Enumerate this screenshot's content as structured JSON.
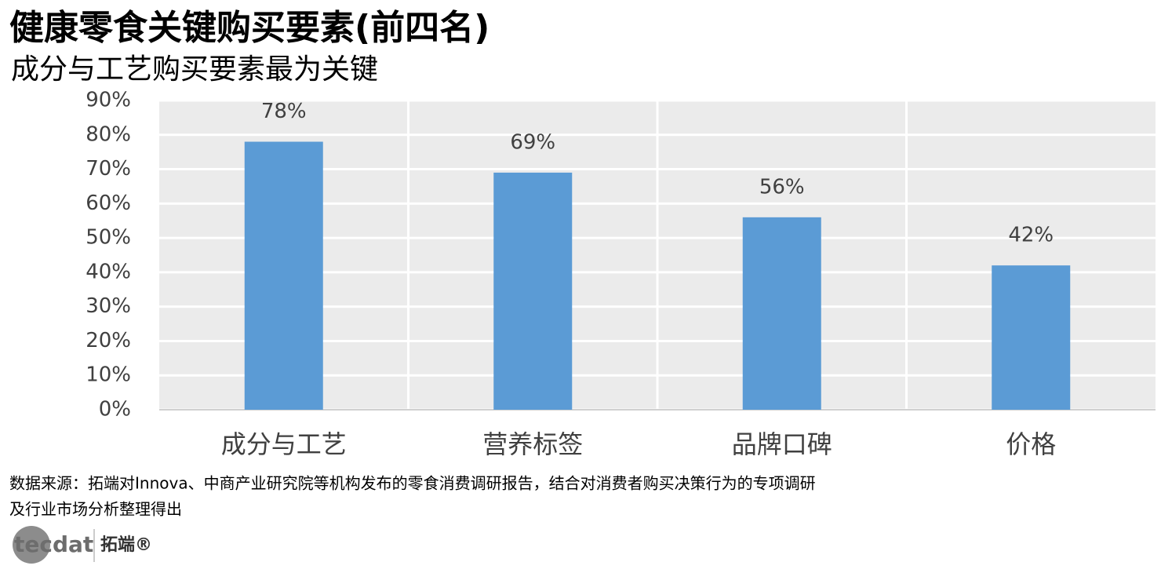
{
  "chart_data": {
    "type": "bar",
    "title": "健康零食关键购买要素(前四名)",
    "subtitle": "成分与工艺购买要素最为关键",
    "categories": [
      "成分与工艺",
      "营养标签",
      "品牌口碑",
      "价格"
    ],
    "values": [
      78,
      69,
      56,
      42
    ],
    "value_labels": [
      "78%",
      "69%",
      "56%",
      "42%"
    ],
    "color": "#5b9bd5",
    "ylim": [
      0,
      90
    ],
    "yticks": [
      {
        "value": 0,
        "label": "0%"
      },
      {
        "value": 10,
        "label": "10%"
      },
      {
        "value": 20,
        "label": "20%"
      },
      {
        "value": 30,
        "label": "30%"
      },
      {
        "value": 40,
        "label": "40%"
      },
      {
        "value": 50,
        "label": "50%"
      },
      {
        "value": 60,
        "label": "60%"
      },
      {
        "value": 70,
        "label": "70%"
      },
      {
        "value": 80,
        "label": "80%"
      },
      {
        "value": 90,
        "label": "90%"
      }
    ],
    "grid": true,
    "source": [
      "数据来源：拓端对Innova、中商产业研究院等机构发布的零食消费调研报告，结合对消费者购买决策行为的专项调研",
      "及行业市场分析整理得出"
    ],
    "logo": {
      "brand": "tecdat",
      "name": "拓端®"
    }
  }
}
